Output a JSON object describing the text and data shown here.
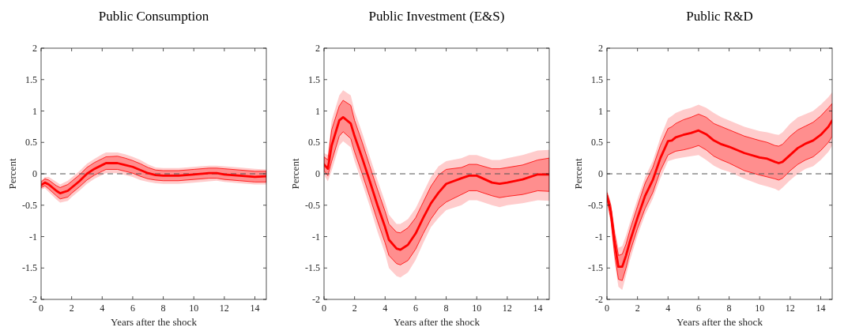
{
  "chart_data": [
    {
      "type": "line",
      "title": "Public Consumption",
      "xlabel": "Years after the shock",
      "ylabel": "Percent",
      "xlim": [
        0,
        14.75
      ],
      "xticks": [
        0,
        2,
        4,
        6,
        8,
        10,
        12,
        14
      ],
      "ylim": [
        -2,
        2
      ],
      "yticks": [
        -2,
        -1.5,
        -1,
        -0.5,
        0,
        0.5,
        1,
        1.5,
        2
      ],
      "grid": false,
      "x": [
        0,
        0.25,
        0.5,
        1,
        1.25,
        1.75,
        2,
        2.5,
        3,
        3.5,
        4,
        4.25,
        5,
        5.5,
        6,
        6.5,
        7,
        7.5,
        8,
        9,
        10,
        11,
        11.5,
        12,
        13,
        14,
        14.75
      ],
      "series": [
        {
          "color": "#ff0000",
          "values": [
            -0.18,
            -0.14,
            -0.17,
            -0.27,
            -0.31,
            -0.27,
            -0.22,
            -0.12,
            0,
            0.08,
            0.14,
            0.17,
            0.17,
            0.14,
            0.11,
            0.06,
            0.01,
            -0.02,
            -0.03,
            -0.03,
            -0.01,
            0.01,
            0.01,
            -0.01,
            -0.03,
            -0.05,
            -0.04
          ],
          "upper": [
            -0.13,
            -0.08,
            -0.1,
            -0.19,
            -0.22,
            -0.17,
            -0.12,
            -0.02,
            0.1,
            0.18,
            0.24,
            0.27,
            0.28,
            0.25,
            0.21,
            0.16,
            0.1,
            0.06,
            0.05,
            0.05,
            0.07,
            0.09,
            0.09,
            0.08,
            0.06,
            0.04,
            0.04
          ],
          "lower": [
            -0.22,
            -0.19,
            -0.24,
            -0.35,
            -0.4,
            -0.37,
            -0.31,
            -0.21,
            -0.1,
            -0.02,
            0.04,
            0.07,
            0.07,
            0.04,
            0.01,
            -0.04,
            -0.08,
            -0.1,
            -0.11,
            -0.11,
            -0.09,
            -0.07,
            -0.07,
            -0.09,
            -0.11,
            -0.13,
            -0.13
          ]
        },
        {
          "color": "#ffcccc",
          "values": [
            null,
            null,
            null,
            null,
            null,
            null,
            null,
            null,
            null,
            null,
            null,
            null,
            null,
            null,
            null,
            null,
            null,
            null,
            null,
            null,
            null,
            null,
            null,
            null,
            null,
            null,
            null
          ],
          "upper": [
            -0.11,
            -0.05,
            -0.05,
            -0.13,
            -0.17,
            -0.11,
            -0.06,
            0.04,
            0.16,
            0.24,
            0.31,
            0.34,
            0.34,
            0.31,
            0.27,
            0.22,
            0.15,
            0.1,
            0.09,
            0.09,
            0.11,
            0.13,
            0.13,
            0.12,
            0.1,
            0.08,
            0.07
          ],
          "lower": [
            -0.25,
            -0.23,
            -0.29,
            -0.41,
            -0.46,
            -0.43,
            -0.37,
            -0.27,
            -0.16,
            -0.08,
            -0.02,
            0.01,
            0.01,
            -0.02,
            -0.05,
            -0.1,
            -0.13,
            -0.15,
            -0.16,
            -0.16,
            -0.14,
            -0.12,
            -0.11,
            -0.13,
            -0.15,
            -0.17,
            -0.17
          ]
        }
      ],
      "ref_lines": [
        {
          "axis": "y",
          "value": 0,
          "color": "#555555",
          "line_style": "dashed"
        }
      ]
    },
    {
      "type": "line",
      "title": "Public Investment (E&S)",
      "xlabel": "Years after the shock",
      "ylabel": "Percent",
      "xlim": [
        0,
        14.75
      ],
      "xticks": [
        0,
        2,
        4,
        6,
        8,
        10,
        12,
        14
      ],
      "ylim": [
        -2,
        2
      ],
      "yticks": [
        -2,
        -1.5,
        -1,
        -0.5,
        0,
        0.5,
        1,
        1.5,
        2
      ],
      "grid": false,
      "x": [
        0,
        0.25,
        0.5,
        1,
        1.25,
        1.75,
        2,
        2.5,
        3,
        3.5,
        4,
        4.25,
        4.75,
        5,
        5.5,
        6,
        6.5,
        7,
        7.5,
        8,
        9,
        9.5,
        10,
        11,
        11.5,
        12,
        13,
        14,
        14.75
      ],
      "series": [
        {
          "color": "#ff0000",
          "values": [
            0.15,
            0.08,
            0.45,
            0.85,
            0.9,
            0.8,
            0.6,
            0.25,
            -0.12,
            -0.5,
            -0.85,
            -1.05,
            -1.19,
            -1.21,
            -1.13,
            -0.95,
            -0.7,
            -0.47,
            -0.3,
            -0.16,
            -0.07,
            -0.03,
            -0.03,
            -0.14,
            -0.16,
            -0.14,
            -0.09,
            -0.01,
            -0.01
          ],
          "upper": [
            0.27,
            0.22,
            0.7,
            1.08,
            1.17,
            1.09,
            0.85,
            0.5,
            0.12,
            -0.25,
            -0.6,
            -0.8,
            -0.93,
            -0.94,
            -0.86,
            -0.7,
            -0.45,
            -0.2,
            -0.02,
            0.07,
            0.1,
            0.15,
            0.15,
            0.08,
            0.08,
            0.1,
            0.14,
            0.22,
            0.25
          ],
          "lower": [
            0.05,
            -0.03,
            0.2,
            0.6,
            0.67,
            0.56,
            0.35,
            0,
            -0.37,
            -0.75,
            -1.1,
            -1.3,
            -1.43,
            -1.45,
            -1.38,
            -1.2,
            -0.95,
            -0.72,
            -0.55,
            -0.45,
            -0.33,
            -0.27,
            -0.27,
            -0.35,
            -0.38,
            -0.36,
            -0.33,
            -0.27,
            -0.28
          ]
        },
        {
          "color": "#ffcccc",
          "values": [
            null,
            null,
            null,
            null,
            null,
            null,
            null,
            null,
            null,
            null,
            null,
            null,
            null,
            null,
            null,
            null,
            null,
            null,
            null,
            null,
            null,
            null,
            null,
            null,
            null,
            null,
            null,
            null,
            null
          ],
          "upper": [
            0.33,
            0.3,
            0.85,
            1.25,
            1.33,
            1.25,
            1,
            0.65,
            0.27,
            -0.1,
            -0.45,
            -0.65,
            -0.8,
            -0.8,
            -0.72,
            -0.55,
            -0.3,
            -0.05,
            0.12,
            0.2,
            0.25,
            0.3,
            0.3,
            0.22,
            0.22,
            0.25,
            0.3,
            0.37,
            0.38
          ],
          "lower": [
            -0.02,
            -0.12,
            0.05,
            0.45,
            0.52,
            0.42,
            0.2,
            -0.15,
            -0.52,
            -0.92,
            -1.27,
            -1.5,
            -1.63,
            -1.65,
            -1.57,
            -1.37,
            -1.1,
            -0.85,
            -0.7,
            -0.58,
            -0.5,
            -0.42,
            -0.42,
            -0.5,
            -0.53,
            -0.5,
            -0.47,
            -0.42,
            -0.43
          ]
        }
      ],
      "ref_lines": [
        {
          "axis": "y",
          "value": 0,
          "color": "#555555",
          "line_style": "dashed"
        }
      ]
    },
    {
      "type": "line",
      "title": "Public R&D",
      "xlabel": "Years after the shock",
      "ylabel": "Percent",
      "xlim": [
        0,
        14.75
      ],
      "xticks": [
        0,
        2,
        4,
        6,
        8,
        10,
        12,
        14
      ],
      "ylim": [
        -2,
        2
      ],
      "yticks": [
        -2,
        -1.5,
        -1,
        -0.5,
        0,
        0.5,
        1,
        1.5,
        2
      ],
      "grid": false,
      "x": [
        0,
        0.25,
        0.5,
        0.75,
        1,
        1.25,
        1.5,
        2,
        2.5,
        3,
        3.5,
        4,
        4.25,
        4.5,
        5,
        5.5,
        6,
        6.5,
        7,
        7.5,
        8,
        9,
        10,
        10.5,
        11,
        11.25,
        11.5,
        12,
        12.5,
        13,
        13.5,
        14,
        14.5,
        14.75
      ],
      "series": [
        {
          "color": "#ff0000",
          "values": [
            -0.35,
            -0.6,
            -1.1,
            -1.48,
            -1.48,
            -1.3,
            -1.08,
            -0.7,
            -0.35,
            -0.1,
            0.25,
            0.52,
            0.53,
            0.58,
            0.62,
            0.65,
            0.69,
            0.63,
            0.53,
            0.47,
            0.43,
            0.33,
            0.26,
            0.24,
            0.19,
            0.17,
            0.19,
            0.3,
            0.41,
            0.48,
            0.53,
            0.62,
            0.75,
            0.85
          ],
          "upper": [
            -0.3,
            -0.5,
            -0.95,
            -1.3,
            -1.28,
            -1.12,
            -0.9,
            -0.52,
            -0.15,
            0.1,
            0.45,
            0.72,
            0.75,
            0.8,
            0.86,
            0.9,
            0.95,
            0.9,
            0.8,
            0.75,
            0.7,
            0.6,
            0.53,
            0.5,
            0.45,
            0.44,
            0.47,
            0.6,
            0.7,
            0.76,
            0.82,
            0.92,
            1.05,
            1.12
          ],
          "lower": [
            -0.4,
            -0.72,
            -1.28,
            -1.68,
            -1.7,
            -1.5,
            -1.25,
            -0.87,
            -0.55,
            -0.3,
            0.05,
            0.3,
            0.33,
            0.36,
            0.38,
            0.41,
            0.45,
            0.38,
            0.28,
            0.22,
            0.17,
            0.05,
            -0.02,
            -0.05,
            -0.08,
            -0.1,
            -0.07,
            0.05,
            0.15,
            0.22,
            0.27,
            0.37,
            0.5,
            0.6
          ]
        },
        {
          "color": "#ffcccc",
          "values": [
            null,
            null,
            null,
            null,
            null,
            null,
            null,
            null,
            null,
            null,
            null,
            null,
            null,
            null,
            null,
            null,
            null,
            null,
            null,
            null,
            null,
            null,
            null,
            null,
            null,
            null,
            null,
            null,
            null,
            null,
            null,
            null,
            null,
            null
          ],
          "upper": [
            -0.25,
            -0.45,
            -0.85,
            -1.18,
            -1.15,
            -0.98,
            -0.78,
            -0.4,
            -0.05,
            0.2,
            0.58,
            0.88,
            0.92,
            0.97,
            1.02,
            1.05,
            1.1,
            1.05,
            0.97,
            0.9,
            0.85,
            0.75,
            0.68,
            0.66,
            0.63,
            0.62,
            0.66,
            0.8,
            0.9,
            0.95,
            1,
            1.1,
            1.22,
            1.3
          ],
          "lower": [
            -0.45,
            -0.8,
            -1.4,
            -1.8,
            -1.85,
            -1.62,
            -1.38,
            -0.98,
            -0.65,
            -0.4,
            -0.07,
            0.2,
            0.22,
            0.24,
            0.26,
            0.28,
            0.3,
            0.22,
            0.13,
            0.07,
            0.03,
            -0.08,
            -0.17,
            -0.2,
            -0.24,
            -0.27,
            -0.22,
            -0.1,
            0,
            0.08,
            0.12,
            0.22,
            0.35,
            0.45
          ]
        }
      ],
      "ref_lines": [
        {
          "axis": "y",
          "value": 0,
          "color": "#555555",
          "line_style": "dashed"
        }
      ]
    }
  ]
}
